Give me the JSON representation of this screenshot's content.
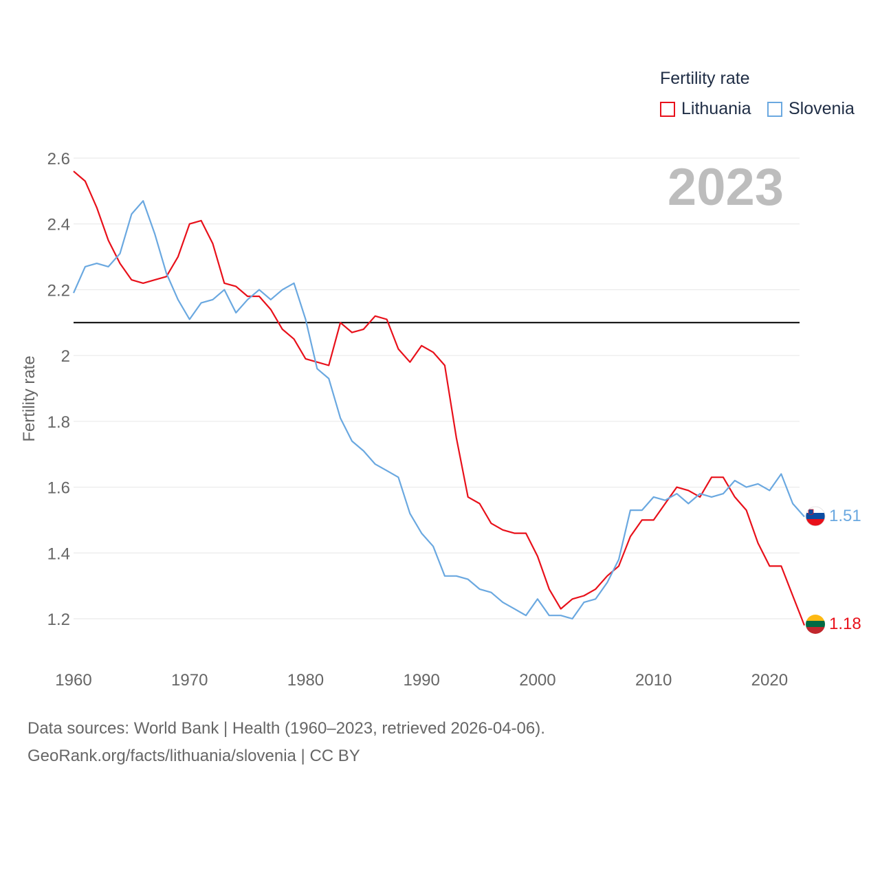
{
  "chart_data": {
    "type": "line",
    "title": "Fertility rate",
    "ylabel": "Fertility rate",
    "xlabel": "",
    "year_label": "2023",
    "xlim": [
      1960,
      2023
    ],
    "ylim": [
      1.1,
      2.6
    ],
    "x_ticks": [
      1960,
      1970,
      1980,
      1990,
      2000,
      2010,
      2020
    ],
    "y_ticks": [
      {
        "value": 1.2,
        "label": "1.2"
      },
      {
        "value": 1.4,
        "label": "1.4"
      },
      {
        "value": 1.6,
        "label": "1.6"
      },
      {
        "value": 1.8,
        "label": "1.8"
      },
      {
        "value": 2.0,
        "label": "2"
      },
      {
        "value": 2.2,
        "label": "2.2"
      },
      {
        "value": 2.4,
        "label": "2.4"
      },
      {
        "value": 2.6,
        "label": "2.6"
      }
    ],
    "reference_line": {
      "value": 2.1
    },
    "x": [
      1960,
      1961,
      1962,
      1963,
      1964,
      1965,
      1966,
      1967,
      1968,
      1969,
      1970,
      1971,
      1972,
      1973,
      1974,
      1975,
      1976,
      1977,
      1978,
      1979,
      1980,
      1981,
      1982,
      1983,
      1984,
      1985,
      1986,
      1987,
      1988,
      1989,
      1990,
      1991,
      1992,
      1993,
      1994,
      1995,
      1996,
      1997,
      1998,
      1999,
      2000,
      2001,
      2002,
      2003,
      2004,
      2005,
      2006,
      2007,
      2008,
      2009,
      2010,
      2011,
      2012,
      2013,
      2014,
      2015,
      2016,
      2017,
      2018,
      2019,
      2020,
      2021,
      2022,
      2023
    ],
    "series": [
      {
        "name": "Lithuania",
        "color": "#e8101a",
        "end_label": "1.18",
        "values": [
          2.56,
          2.53,
          2.45,
          2.35,
          2.28,
          2.23,
          2.22,
          2.23,
          2.24,
          2.3,
          2.4,
          2.41,
          2.34,
          2.22,
          2.21,
          2.18,
          2.18,
          2.14,
          2.08,
          2.05,
          1.99,
          1.98,
          1.97,
          2.1,
          2.07,
          2.08,
          2.12,
          2.11,
          2.02,
          1.98,
          2.03,
          2.01,
          1.97,
          1.75,
          1.57,
          1.55,
          1.49,
          1.47,
          1.46,
          1.46,
          1.39,
          1.29,
          1.23,
          1.26,
          1.27,
          1.29,
          1.33,
          1.36,
          1.45,
          1.5,
          1.5,
          1.55,
          1.6,
          1.59,
          1.57,
          1.63,
          1.63,
          1.57,
          1.53,
          1.43,
          1.36,
          1.36,
          1.27,
          1.18
        ]
      },
      {
        "name": "Slovenia",
        "color": "#6aa8e0",
        "end_label": "1.51",
        "values": [
          2.19,
          2.27,
          2.28,
          2.27,
          2.31,
          2.43,
          2.47,
          2.37,
          2.25,
          2.17,
          2.11,
          2.16,
          2.17,
          2.2,
          2.13,
          2.17,
          2.2,
          2.17,
          2.2,
          2.22,
          2.11,
          1.96,
          1.93,
          1.81,
          1.74,
          1.71,
          1.67,
          1.65,
          1.63,
          1.52,
          1.46,
          1.42,
          1.33,
          1.33,
          1.32,
          1.29,
          1.28,
          1.25,
          1.23,
          1.21,
          1.26,
          1.21,
          1.21,
          1.2,
          1.25,
          1.26,
          1.31,
          1.38,
          1.53,
          1.53,
          1.57,
          1.56,
          1.58,
          1.55,
          1.58,
          1.57,
          1.58,
          1.62,
          1.6,
          1.61,
          1.59,
          1.64,
          1.55,
          1.51
        ]
      }
    ]
  },
  "legend": {
    "title": "Fertility rate",
    "items": [
      {
        "label": "Lithuania",
        "color": "#e8101a"
      },
      {
        "label": "Slovenia",
        "color": "#6aa8e0"
      }
    ]
  },
  "flags": {
    "lithuania": "lithuania-flag-icon",
    "slovenia": "slovenia-flag-icon"
  },
  "footer": {
    "sources": "Data sources: World Bank | Health (1960–2023, retrieved 2026-04-06).",
    "credit": "GeoRank.org/facts/lithuania/slovenia | CC BY"
  }
}
